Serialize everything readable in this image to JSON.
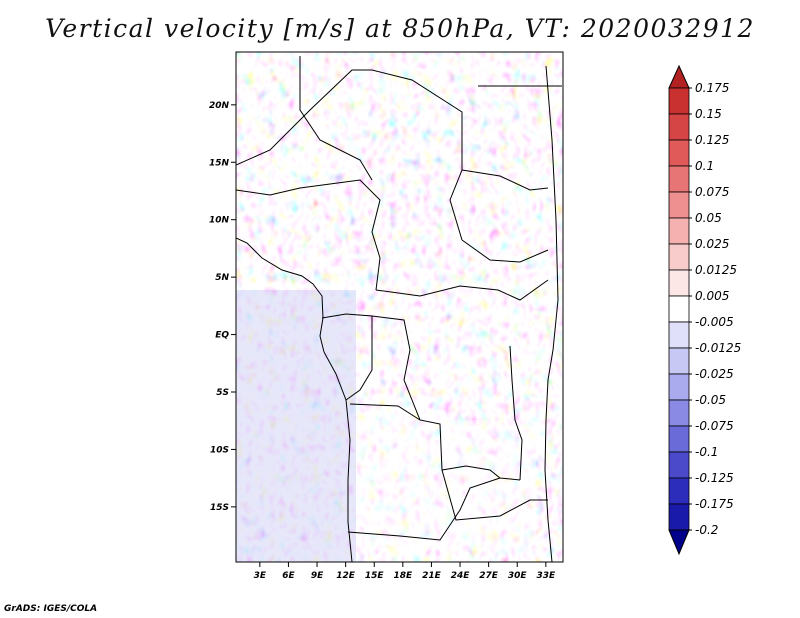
{
  "title": "Vertical velocity [m/s] at 850hPa, VT: 2020032912",
  "credit": "GrADS: IGES/COLA",
  "map": {
    "lon_labels": [
      "3E",
      "6E",
      "9E",
      "12E",
      "15E",
      "18E",
      "21E",
      "24E",
      "27E",
      "30E",
      "33E"
    ],
    "lon_values": [
      3,
      6,
      9,
      12,
      15,
      18,
      21,
      24,
      27,
      30,
      33
    ],
    "lat_labels": [
      "20N",
      "15N",
      "10N",
      "5N",
      "EQ",
      "5S",
      "10S",
      "15S"
    ],
    "lat_values": [
      20,
      15,
      10,
      5,
      0,
      -5,
      -10,
      -15
    ],
    "lon_range": [
      0.5,
      34.8
    ],
    "lat_range": [
      -19.8,
      24.6
    ]
  },
  "colorbar": {
    "labels": [
      "0.175",
      "0.15",
      "0.125",
      "0.1",
      "0.075",
      "0.05",
      "0.025",
      "0.0125",
      "0.005",
      "-0.005",
      "-0.0125",
      "-0.025",
      "-0.05",
      "-0.075",
      "-0.1",
      "-0.125",
      "-0.175",
      "-0.2"
    ],
    "colors": [
      "#b22222",
      "#c93030",
      "#d64545",
      "#e05a5a",
      "#e87575",
      "#ef9090",
      "#f5b0b0",
      "#f9cccc",
      "#fde6e6",
      "#ffffff",
      "#e0e0fb",
      "#c8c8f5",
      "#aaaaee",
      "#8a8ae4",
      "#6a6ad8",
      "#4a4acb",
      "#2d2dbb",
      "#1a1aaa",
      "#00008b"
    ]
  }
}
